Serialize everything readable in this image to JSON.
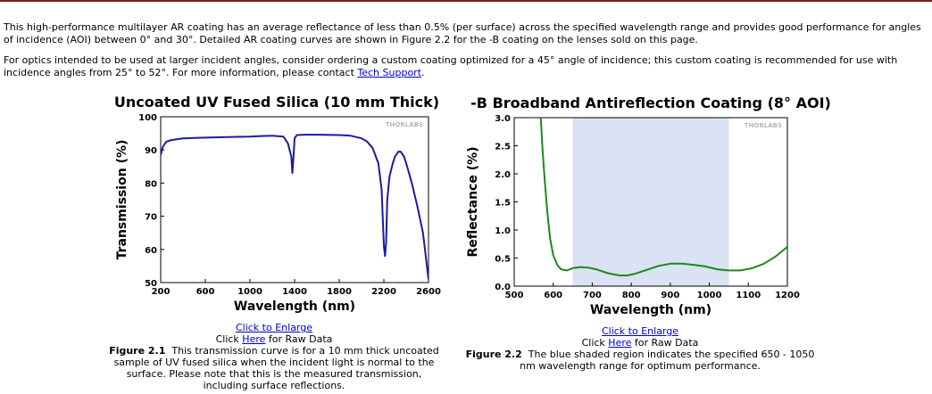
{
  "intro": {
    "p1": "This high-performance multilayer AR coating has an average reflectance of less than 0.5% (per surface) across the specified wavelength range and provides good performance for angles of incidence (AOI) between 0° and 30°. Detailed AR coating curves are shown in Figure 2.2 for the -B coating on the lenses sold on this page.",
    "p2_before": "For optics intended to be used at larger incident angles, consider ordering a custom coating optimized for a 45° angle of incidence; this custom coating is recommended for use with incidence angles from 25° to 52°. For more information, please contact ",
    "p2_link": "Tech Support",
    "p2_after": "."
  },
  "figures": [
    {
      "enlarge_link": "Click to Enlarge",
      "raw_prefix": "Click ",
      "raw_link": "Here",
      "raw_suffix": " for Raw Data",
      "label": "Figure 2.1",
      "caption": "This transmission curve is for a 10 mm thick uncoated sample of UV fused silica when the incident light is normal to the surface. Please note that this is the measured transmission, including surface reflections."
    },
    {
      "enlarge_link": "Click to Enlarge",
      "raw_prefix": "Click ",
      "raw_link": "Here",
      "raw_suffix": " for Raw Data",
      "label": "Figure 2.2",
      "caption": "The blue shaded region indicates the specified 650 - 1050 nm wavelength range for optimum performance."
    }
  ],
  "chart_data": [
    {
      "type": "line",
      "title": "Uncoated UV Fused Silica (10 mm Thick)",
      "xlabel": "Wavelength (nm)",
      "ylabel": "Transmission (%)",
      "xlim": [
        200,
        2600
      ],
      "ylim": [
        50,
        100
      ],
      "xticks": [
        200,
        600,
        1000,
        1400,
        1800,
        2200,
        2600
      ],
      "yticks": [
        50,
        60,
        70,
        80,
        90,
        100
      ],
      "watermark": "THORLABS",
      "color": "#1a1aa6",
      "x": [
        200,
        220,
        250,
        300,
        400,
        500,
        600,
        800,
        1000,
        1100,
        1200,
        1300,
        1340,
        1370,
        1380,
        1390,
        1400,
        1420,
        1500,
        1600,
        1800,
        1900,
        2000,
        2050,
        2100,
        2150,
        2180,
        2200,
        2210,
        2220,
        2230,
        2250,
        2280,
        2300,
        2330,
        2350,
        2380,
        2400,
        2450,
        2500,
        2550,
        2600
      ],
      "y": [
        88.5,
        91,
        92.5,
        93,
        93.5,
        93.6,
        93.7,
        93.9,
        94,
        94.2,
        94.3,
        94,
        92,
        88,
        83,
        88,
        93.5,
        94.5,
        94.6,
        94.6,
        94.5,
        94.3,
        93.5,
        92.5,
        90.5,
        86,
        78,
        61,
        58,
        62,
        75,
        82,
        86,
        88,
        89.5,
        89.5,
        88,
        86,
        80,
        73,
        65,
        51
      ]
    },
    {
      "type": "line",
      "title": "-B Broadband Antireflection Coating (8° AOI)",
      "xlabel": "Wavelength (nm)",
      "ylabel": "Reflectance (%)",
      "xlim": [
        500,
        1200
      ],
      "ylim": [
        0,
        3
      ],
      "xticks": [
        500,
        600,
        700,
        800,
        900,
        1000,
        1100,
        1200
      ],
      "yticks": [
        0.0,
        0.5,
        1.0,
        1.5,
        2.0,
        2.5,
        3.0
      ],
      "ytick_labels": [
        "0.0",
        "0.5",
        "1.0",
        "1.5",
        "2.0",
        "2.5",
        "3.0"
      ],
      "shaded_region": [
        650,
        1050
      ],
      "watermark": "THORLABS",
      "color": "#1a8a1a",
      "shade_color": "#dbe2f3",
      "x": [
        568,
        572,
        578,
        585,
        592,
        600,
        610,
        620,
        635,
        650,
        670,
        690,
        710,
        740,
        770,
        790,
        810,
        840,
        870,
        900,
        930,
        960,
        990,
        1020,
        1050,
        1080,
        1110,
        1140,
        1170,
        1200
      ],
      "y": [
        3.0,
        2.5,
        1.9,
        1.3,
        0.85,
        0.55,
        0.38,
        0.3,
        0.28,
        0.32,
        0.34,
        0.33,
        0.3,
        0.23,
        0.19,
        0.19,
        0.22,
        0.29,
        0.36,
        0.4,
        0.4,
        0.38,
        0.35,
        0.3,
        0.28,
        0.28,
        0.32,
        0.4,
        0.53,
        0.7
      ]
    }
  ]
}
